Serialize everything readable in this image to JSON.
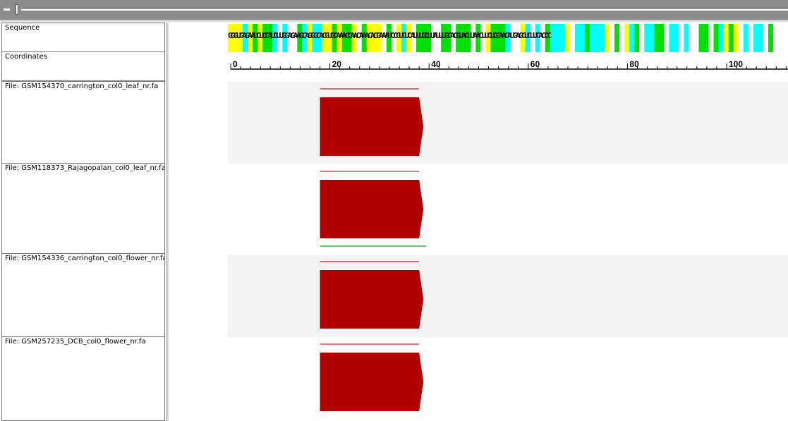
{
  "titlebar": {
    "collapse_symbol": "-"
  },
  "left_panel": {
    "sequence_label": "Sequence",
    "coordinates_label": "Coordinates",
    "files": [
      "File: GSM154370_carrington_col0_leaf_nr.fa",
      "File: GSM118373_Rajagopalan_col0_leaf_nr.fa",
      "File: GSM154336_carrington_col0_flower_nr.fa",
      "File: GSM257235_DCB_col0_flower_nr.fa"
    ]
  },
  "sequence": {
    "text": "GGGUGAGAAUCUCCAUGUUGGAGAAGCAGGGCACGUGCAAACCAACAAACACGAAAUCCGUCUCAUUUGCUUAUUUGCACGUACUUAACUUCUCCAACAUGAGCUCUUCACCC",
    "base_colors": {
      "G": "#ffff00",
      "U": "#00ffff",
      "A": "#00e000",
      "C": "#ffffff"
    }
  },
  "coordinates": {
    "ticks": [
      "0",
      "20",
      "40",
      "60",
      "80",
      "100"
    ]
  },
  "reads": [
    {
      "file": "GSM154370_carrington_col0_leaf_nr.fa",
      "start": 18,
      "end": 38,
      "strand": "+"
    },
    {
      "file": "GSM118373_Rajagopalan_col0_leaf_nr.fa",
      "start": 18,
      "end": 38,
      "strand": "+",
      "extra_line": {
        "start": 18,
        "end": 39,
        "color": "#00b000"
      }
    },
    {
      "file": "GSM154336_carrington_col0_flower_nr.fa",
      "start": 18,
      "end": 38,
      "strand": "+"
    },
    {
      "file": "GSM257235_DCB_col0_flower_nr.fa",
      "start": 18,
      "end": 38,
      "strand": "+"
    }
  ],
  "colors": {
    "read": "#b00000",
    "read_line": "#d02020",
    "track_bg_alt": "#f3f3f3"
  }
}
